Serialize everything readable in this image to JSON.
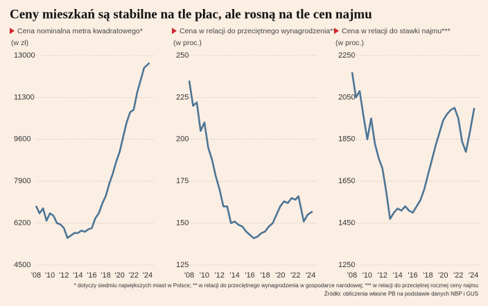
{
  "title": "Ceny mieszkań są stabilne na tle płac, ale rosną na tle cen najmu",
  "notes": [
    "* dotyczy siedmiu największych miast w Polsce; ** w relacji do przeciętnego wynagrodzenia w gospodarce narodowej; *** w relacji do przeciętnej rocznej ceny najmu",
    "Źródło: obliczenia własne PB na podstawie danych NBP i GUS"
  ],
  "chart_data": [
    {
      "type": "line",
      "subtitle": "Cena nominalna metra kwadratowego*",
      "ylabel": "(w zł)",
      "color": "#4b7595",
      "x": [
        2008,
        2008.5,
        2009,
        2009.5,
        2010,
        2010.5,
        2011,
        2011.5,
        2012,
        2012.5,
        2013,
        2013.5,
        2014,
        2014.5,
        2015,
        2015.5,
        2016,
        2016.5,
        2017,
        2017.5,
        2018,
        2018.5,
        2019,
        2019.5,
        2020,
        2020.5,
        2021,
        2021.5,
        2022,
        2022.5,
        2023,
        2023.5,
        2024.25
      ],
      "values": [
        6900,
        6600,
        6800,
        6300,
        6600,
        6500,
        6200,
        6150,
        6000,
        5600,
        5700,
        5800,
        5800,
        5900,
        5850,
        5950,
        6000,
        6400,
        6600,
        7000,
        7300,
        7800,
        8200,
        8700,
        9100,
        9700,
        10300,
        10700,
        10800,
        11500,
        12000,
        12500,
        12700
      ],
      "xlim": [
        2008,
        2025
      ],
      "xticks": [
        {
          "value": 2008,
          "label": "'08"
        },
        {
          "value": 2010,
          "label": "'10"
        },
        {
          "value": 2012,
          "label": "'12"
        },
        {
          "value": 2014,
          "label": "'14"
        },
        {
          "value": 2016,
          "label": "'16"
        },
        {
          "value": 2018,
          "label": "'18"
        },
        {
          "value": 2020,
          "label": "'20"
        },
        {
          "value": 2022,
          "label": "'22"
        },
        {
          "value": 2024,
          "label": "'24"
        }
      ],
      "ylim": [
        4500,
        13000
      ],
      "yticks": [
        4500,
        6200,
        7900,
        9600,
        11300,
        13000
      ],
      "grid": true
    },
    {
      "type": "line",
      "subtitle": "Cena w relacji do przeciętnego wynagrodzenia**",
      "ylabel": "(w proc.)",
      "color": "#4b7595",
      "x": [
        2008,
        2008.5,
        2009,
        2009.5,
        2010,
        2010.5,
        2011,
        2011.5,
        2012,
        2012.5,
        2013,
        2013.5,
        2014,
        2014.5,
        2015,
        2015.5,
        2016,
        2016.5,
        2017,
        2017.5,
        2018,
        2018.5,
        2019,
        2019.5,
        2020,
        2020.5,
        2021,
        2021.5,
        2022,
        2022.4,
        2023.1,
        2023.6,
        2024.25
      ],
      "values": [
        235,
        220,
        222,
        205,
        210,
        195,
        188,
        178,
        170,
        160,
        160,
        150,
        151,
        149,
        148,
        145,
        143,
        141,
        142,
        144,
        145,
        148,
        150,
        155,
        160,
        163,
        162,
        165,
        164,
        166,
        151,
        155,
        157
      ],
      "xlim": [
        2008,
        2025
      ],
      "xticks": [
        {
          "value": 2008,
          "label": "'08"
        },
        {
          "value": 2010,
          "label": "'10"
        },
        {
          "value": 2012,
          "label": "'12"
        },
        {
          "value": 2014,
          "label": "'14"
        },
        {
          "value": 2016,
          "label": "'16"
        },
        {
          "value": 2018,
          "label": "'18"
        },
        {
          "value": 2020,
          "label": "'20"
        },
        {
          "value": 2022,
          "label": "'22"
        },
        {
          "value": 2024,
          "label": "'24"
        }
      ],
      "ylim": [
        125,
        250
      ],
      "yticks": [
        125,
        150,
        175,
        200,
        225,
        250
      ],
      "grid": true
    },
    {
      "type": "line",
      "subtitle": "Cena w relacji do stawki najmu***",
      "ylabel": "(w proc.)",
      "color": "#4b7595",
      "x": [
        2008,
        2008.5,
        2009,
        2009.5,
        2010,
        2010.5,
        2011,
        2011.5,
        2012,
        2012.5,
        2013,
        2013.5,
        2014,
        2014.5,
        2015,
        2015.5,
        2016,
        2016.5,
        2017,
        2017.5,
        2018,
        2018.5,
        2019,
        2019.5,
        2020,
        2020.5,
        2021,
        2021.5,
        2022,
        2022.5,
        2023,
        2023.5,
        2024.1
      ],
      "values": [
        2170,
        2050,
        2080,
        1960,
        1850,
        1950,
        1830,
        1760,
        1710,
        1600,
        1470,
        1500,
        1520,
        1510,
        1530,
        1510,
        1500,
        1530,
        1560,
        1610,
        1680,
        1750,
        1820,
        1880,
        1940,
        1970,
        1990,
        2000,
        1950,
        1840,
        1790,
        1880,
        2000
      ],
      "xlim": [
        2008,
        2025
      ],
      "xticks": [
        {
          "value": 2008,
          "label": "'08"
        },
        {
          "value": 2010,
          "label": "'10"
        },
        {
          "value": 2012,
          "label": "'12"
        },
        {
          "value": 2014,
          "label": "'14"
        },
        {
          "value": 2016,
          "label": "'16"
        },
        {
          "value": 2018,
          "label": "'18"
        },
        {
          "value": 2020,
          "label": "'20"
        },
        {
          "value": 2022,
          "label": "'22"
        },
        {
          "value": 2024,
          "label": "'24"
        }
      ],
      "ylim": [
        1250,
        2250
      ],
      "yticks": [
        1250,
        1450,
        1650,
        1850,
        2050,
        2250
      ],
      "grid": true
    }
  ]
}
